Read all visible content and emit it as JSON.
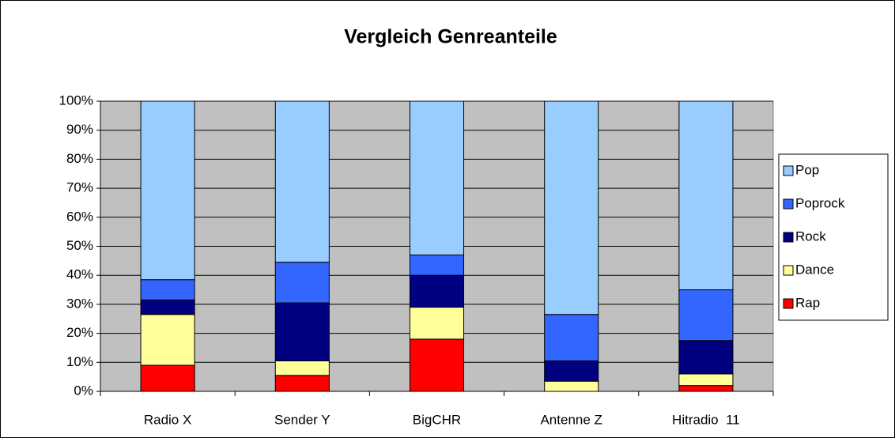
{
  "chart_data": {
    "type": "bar",
    "stacked": true,
    "title": "Vergleich Genreanteile",
    "categories": [
      "Radio X",
      "Sender Y",
      "BigCHR",
      "Antenne Z",
      "Hitradio  11"
    ],
    "series": [
      {
        "name": "Rap",
        "color": "#ff0000",
        "values": [
          9,
          5.5,
          18,
          0,
          2
        ]
      },
      {
        "name": "Dance",
        "color": "#ffff99",
        "values": [
          17.5,
          5,
          11,
          3.5,
          4
        ]
      },
      {
        "name": "Rock",
        "color": "#000080",
        "values": [
          5,
          20,
          11,
          7,
          11.5
        ]
      },
      {
        "name": "Poprock",
        "color": "#3366ff",
        "values": [
          7,
          14,
          7,
          16,
          17.5
        ]
      },
      {
        "name": "Pop",
        "color": "#99ccff",
        "values": [
          61.5,
          55.5,
          53,
          73.5,
          65
        ]
      }
    ],
    "ylim": [
      0,
      100
    ],
    "yticks": [
      {
        "value": 0,
        "label": "0%"
      },
      {
        "value": 10,
        "label": "10%"
      },
      {
        "value": 20,
        "label": "20%"
      },
      {
        "value": 30,
        "label": "30%"
      },
      {
        "value": 40,
        "label": "40%"
      },
      {
        "value": 50,
        "label": "50%"
      },
      {
        "value": 60,
        "label": "60%"
      },
      {
        "value": 70,
        "label": "70%"
      },
      {
        "value": 80,
        "label": "80%"
      },
      {
        "value": 90,
        "label": "90%"
      },
      {
        "value": 100,
        "label": "100%"
      }
    ],
    "grid": true,
    "legend": "right",
    "plot_background": "#c0c0c0"
  }
}
